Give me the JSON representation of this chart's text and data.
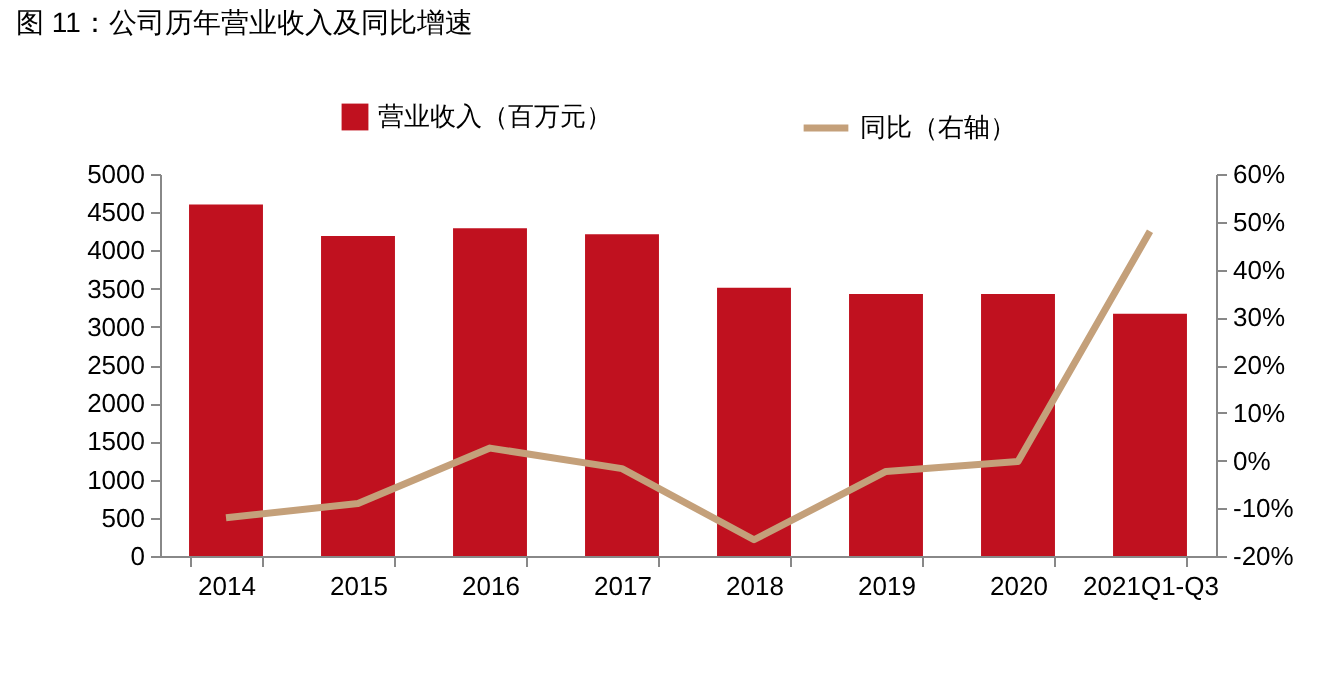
{
  "chart_data": {
    "type": "bar",
    "title": "图 11：公司历年营业收入及同比增速",
    "categories": [
      "2014",
      "2015",
      "2016",
      "2017",
      "2018",
      "2019",
      "2020",
      "2021Q1-Q3"
    ],
    "series": [
      {
        "name": "营业收入（百万元）",
        "color": "#c0111f",
        "values": [
          4600,
          4190,
          4290,
          4210,
          3510,
          3430,
          3430,
          3170
        ]
      },
      {
        "name": "同比（右轴）",
        "type": "line",
        "axis": "y2",
        "color": "#c4a07a",
        "values": [
          -12,
          -9,
          2.6,
          -1.7,
          -16.6,
          -2.3,
          -0.2,
          48
        ]
      }
    ],
    "ylim": [
      0,
      5000
    ],
    "yticks": [
      0,
      500,
      1000,
      1500,
      2000,
      2500,
      3000,
      3500,
      4000,
      4500,
      5000
    ],
    "y2lim": [
      -20,
      60
    ],
    "y2ticks": [
      {
        "value": -20,
        "label": "-20%"
      },
      {
        "value": -10,
        "label": "-10%"
      },
      {
        "value": 0,
        "label": "0%"
      },
      {
        "value": 10,
        "label": "10%"
      },
      {
        "value": 20,
        "label": "20%"
      },
      {
        "value": 30,
        "label": "30%"
      },
      {
        "value": 40,
        "label": "40%"
      },
      {
        "value": 50,
        "label": "50%"
      },
      {
        "value": 60,
        "label": "60%"
      }
    ],
    "grid": false,
    "legend": "top"
  }
}
